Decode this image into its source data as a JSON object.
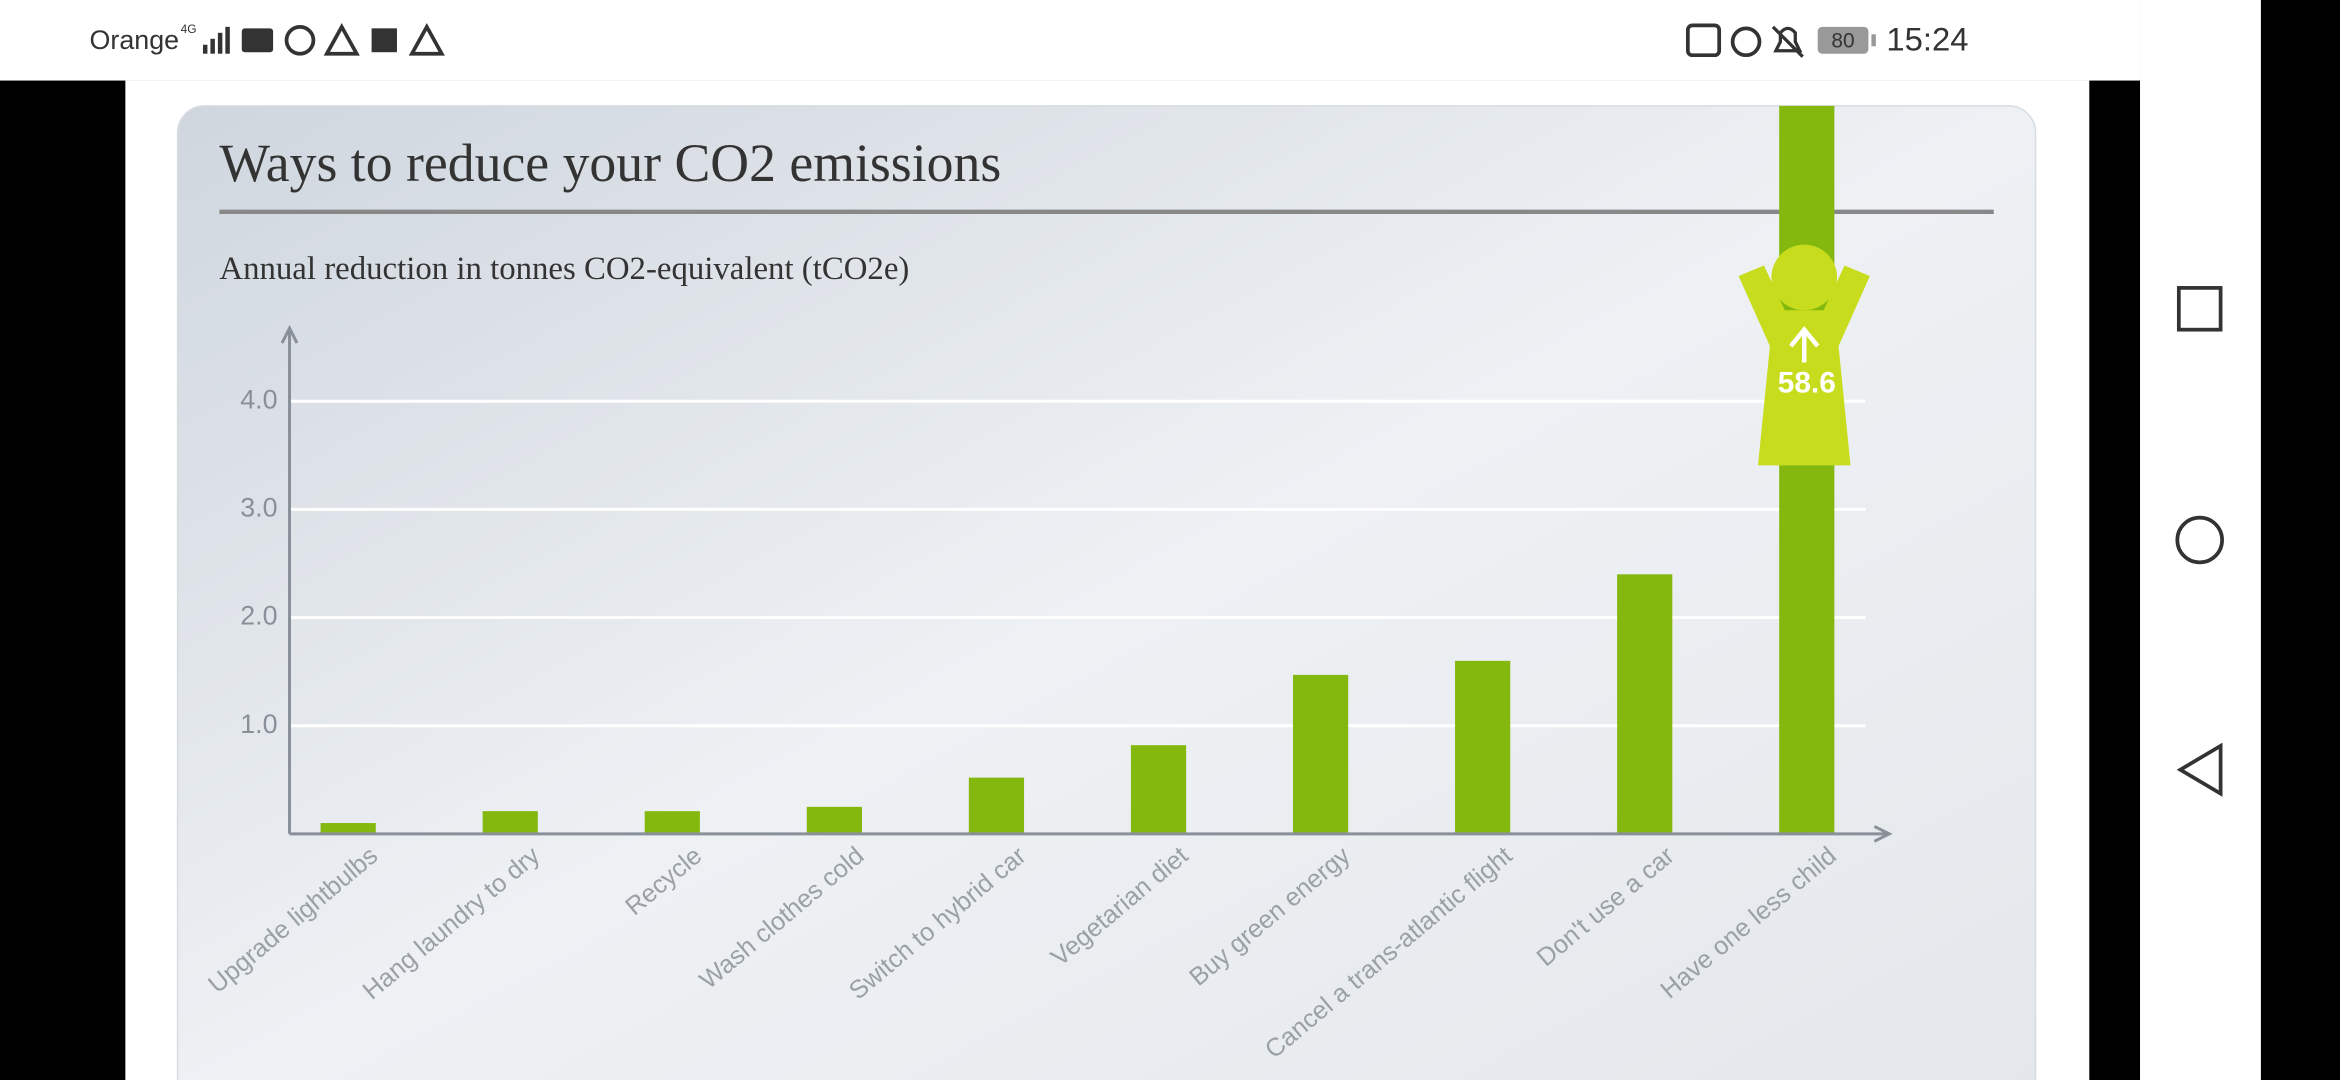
{
  "status_bar": {
    "carrier": "Orange",
    "network": "4G",
    "battery": "80",
    "time": "15:24"
  },
  "chart_data": {
    "type": "bar",
    "title": "Ways to reduce your CO2 emissions",
    "subtitle": "Annual reduction in tonnes CO2-equivalent (tCO2e)",
    "categories": [
      "Upgrade lightbulbs",
      "Hang laundry to dry",
      "Recycle",
      "Wash clothes cold",
      "Switch to hybrid car",
      "Vegetarian diet",
      "Buy green energy",
      "Cancel a trans-atlantic flight",
      "Don't use a car",
      "Have one less child"
    ],
    "values": [
      0.1,
      0.21,
      0.21,
      0.25,
      0.52,
      0.82,
      1.47,
      1.6,
      2.4,
      58.6
    ],
    "value_labels": [
      null,
      null,
      null,
      null,
      null,
      null,
      null,
      null,
      null,
      "58.6"
    ],
    "color": "#84b80f",
    "ylim": [
      0,
      4.7
    ],
    "yticks": [
      {
        "value": 1,
        "label": "1.0"
      },
      {
        "value": 2,
        "label": "2.0"
      },
      {
        "value": 3,
        "label": "3.0"
      },
      {
        "value": 4,
        "label": "4.0"
      }
    ],
    "grid": true
  }
}
